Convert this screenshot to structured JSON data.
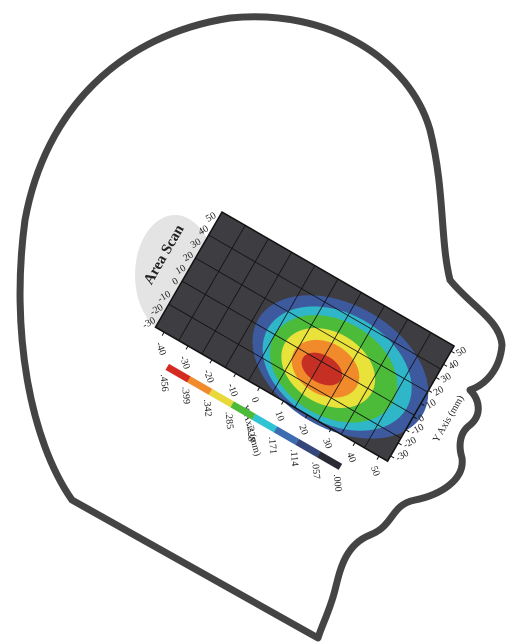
{
  "title": "Area Scan",
  "x_axis": {
    "label": "X Axis (mm)",
    "ticks": [
      "-40",
      "-30",
      "-20",
      "-10",
      "0",
      "10",
      "20",
      "30",
      "40",
      "50"
    ]
  },
  "y_axis": {
    "label": "Y Axis (mm)",
    "ticks": [
      "-30",
      "-20",
      "-10",
      "0",
      "10",
      "20",
      "30",
      "40",
      "50"
    ]
  },
  "colorbar": {
    "labels": [
      ".456",
      ".399",
      ".342",
      ".285",
      ".228",
      ".171",
      ".114",
      ".057",
      ".000"
    ]
  }
}
